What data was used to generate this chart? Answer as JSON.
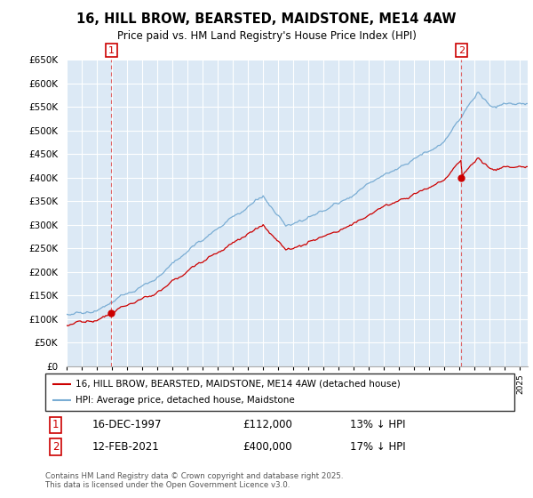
{
  "title": "16, HILL BROW, BEARSTED, MAIDSTONE, ME14 4AW",
  "subtitle": "Price paid vs. HM Land Registry's House Price Index (HPI)",
  "legend_entry1": "16, HILL BROW, BEARSTED, MAIDSTONE, ME14 4AW (detached house)",
  "legend_entry2": "HPI: Average price, detached house, Maidstone",
  "annotation1_date": "16-DEC-1997",
  "annotation1_price": "£112,000",
  "annotation1_hpi": "13% ↓ HPI",
  "annotation2_date": "12-FEB-2021",
  "annotation2_price": "£400,000",
  "annotation2_hpi": "17% ↓ HPI",
  "footer": "Contains HM Land Registry data © Crown copyright and database right 2025.\nThis data is licensed under the Open Government Licence v3.0.",
  "property_color": "#cc0000",
  "hpi_color": "#7aadd4",
  "vline_color": "#dd4444",
  "background_color": "#dce9f5",
  "ylim": [
    0,
    650000
  ],
  "sale1_year": 1997.958,
  "sale1_price": 112000,
  "sale2_year": 2021.12,
  "sale2_price": 400000
}
